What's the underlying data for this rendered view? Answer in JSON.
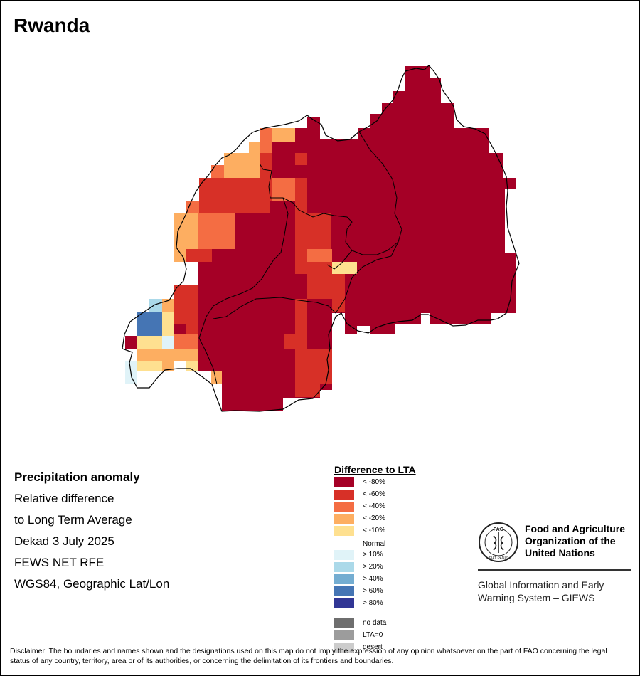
{
  "map": {
    "title": "Rwanda",
    "info_lines": [
      "Precipitation anomaly",
      "Relative difference",
      "to Long Term Average",
      "Dekad 3 July 2025",
      "FEWS NET RFE",
      "WGS84, Geographic Lat/Lon"
    ]
  },
  "legend": {
    "title": "Difference to LTA",
    "normal_label": "Normal",
    "items": [
      {
        "label": "< -80%",
        "color": "#a50026"
      },
      {
        "label": "< -60%",
        "color": "#d73027"
      },
      {
        "label": "< -40%",
        "color": "#f46d43"
      },
      {
        "label": "< -20%",
        "color": "#fdae61"
      },
      {
        "label": "< -10%",
        "color": "#fee090"
      },
      {
        "label": "> 10%",
        "color": "#e0f3f8"
      },
      {
        "label": "> 20%",
        "color": "#abd9e9"
      },
      {
        "label": "> 40%",
        "color": "#74add1"
      },
      {
        "label": "> 60%",
        "color": "#4575b4"
      },
      {
        "label": "> 80%",
        "color": "#313695"
      },
      {
        "label": "no data",
        "color": "#6e6e6e"
      },
      {
        "label": "LTA=0",
        "color": "#9c9c9c"
      },
      {
        "label": "desert",
        "color": "#cccccc"
      }
    ]
  },
  "org": {
    "logo_text_top": "FAO",
    "logo_text_ring": "FIAT PANIS",
    "name_lines": [
      "Food and Agriculture",
      "Organization of the",
      "United Nations"
    ],
    "system_lines": [
      "Global Information and Early",
      "Warning System – GIEWS"
    ]
  },
  "disclaimer": "Disclaimer: The boundaries and names shown and the designations used on this map do not imply the expression of any opinion whatsoever on the part of FAO concerning the legal status of any country, territory, area or of its authorities, or concerning the delimitation of its frontiers and boundaries."
}
